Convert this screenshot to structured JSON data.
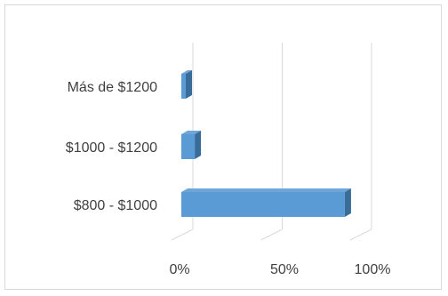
{
  "chart_data": {
    "type": "bar",
    "orientation": "horizontal",
    "style": "3d-clustered",
    "categories": [
      "$800 - $1000",
      "$1000 - $1200",
      "Más de $1200"
    ],
    "values": [
      0.92,
      0.08,
      0.02
    ],
    "x_ticks": [
      "0%",
      "50%",
      "100%"
    ],
    "xlim": [
      0,
      1
    ],
    "title": "",
    "xlabel": "",
    "ylabel": "",
    "grid": true,
    "legend": "none",
    "colors": {
      "bar_front": "#5b9bd5",
      "bar_top": "#6ea6da",
      "bar_side": "#3a6c99",
      "gridline": "#d9d9d9",
      "text": "#404040"
    }
  }
}
